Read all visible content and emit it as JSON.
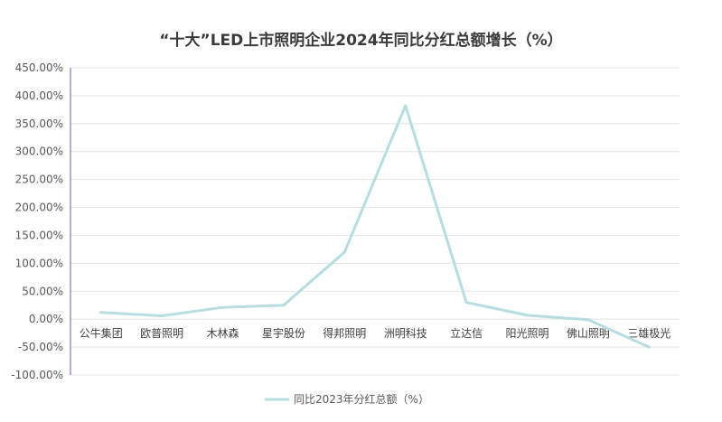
{
  "chart_data": {
    "type": "line",
    "title": "“十大”LED上市照明企业2024年同比分红总额增长（%）",
    "categories": [
      "公牛集团",
      "欧普照明",
      "木林森",
      "星宇股份",
      "得邦照明",
      "洲明科技",
      "立达信",
      "阳光照明",
      "佛山照明",
      "三雄极光"
    ],
    "series": [
      {
        "name": "同比2023年分红总额（%）",
        "values": [
          12,
          6,
          21,
          25,
          120,
          382,
          30,
          7,
          -1,
          -50
        ],
        "color": "#b6dde0"
      }
    ],
    "y_ticks": [
      "450.00%",
      "400.00%",
      "350.00%",
      "300.00%",
      "250.00%",
      "200.00%",
      "150.00%",
      "100.00%",
      "50.00%",
      "0.00%",
      "-50.00%",
      "-100.00%"
    ],
    "ylim": [
      -100,
      450
    ],
    "grid": true,
    "legend": "bottom-center"
  }
}
